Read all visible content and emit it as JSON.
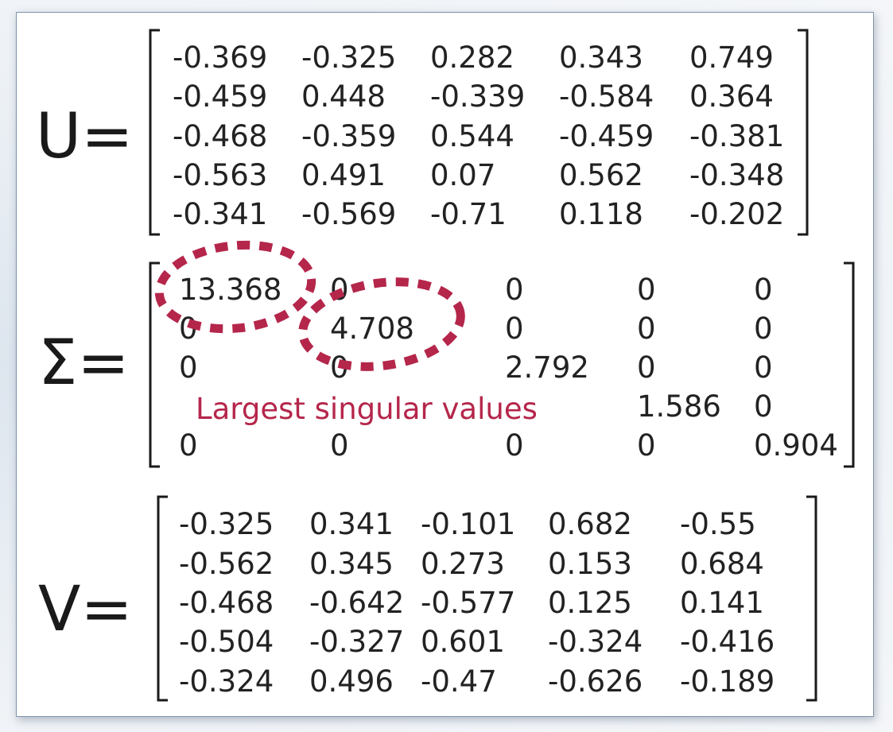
{
  "u_label": "U=",
  "sigma_label": "Σ=",
  "v_label": "V=",
  "u_rows": [
    [
      "-0.369",
      "-0.325",
      "0.282",
      "0.343",
      "0.749"
    ],
    [
      "-0.459",
      "0.448",
      "-0.339",
      "-0.584",
      "0.364"
    ],
    [
      "-0.468",
      "-0.359",
      "0.544",
      "-0.459",
      "-0.381"
    ],
    [
      "-0.563",
      "0.491",
      "0.07",
      "0.562",
      "-0.348"
    ],
    [
      "-0.341",
      "-0.569",
      "-0.71",
      "0.118",
      "-0.202"
    ]
  ],
  "sigma_rows": [
    [
      "13.368",
      "0",
      "0",
      "0",
      "0"
    ],
    [
      "0",
      "4.708",
      "0",
      "0",
      "0"
    ],
    [
      "0",
      "0",
      "2.792",
      "0",
      "0"
    ],
    [
      "",
      "",
      "",
      "1.586",
      "0"
    ],
    [
      "0",
      "0",
      "0",
      "0",
      "0.904"
    ]
  ],
  "v_rows": [
    [
      "-0.325",
      "0.341",
      "-0.101",
      "0.682",
      "-0.55"
    ],
    [
      "-0.562",
      "0.345",
      "0.273",
      "0.153",
      "0.684"
    ],
    [
      "-0.468",
      "-0.642",
      "-0.577",
      "0.125",
      "0.141"
    ],
    [
      "-0.504",
      "-0.327",
      "0.601",
      "-0.324",
      "-0.416"
    ],
    [
      "-0.324",
      "0.496",
      "-0.47",
      "-0.626",
      "-0.189"
    ]
  ],
  "callout_text": "Largest singular values",
  "colors": {
    "highlight": "#b5264b",
    "text": "#222222",
    "frame": "#7f93a8"
  }
}
